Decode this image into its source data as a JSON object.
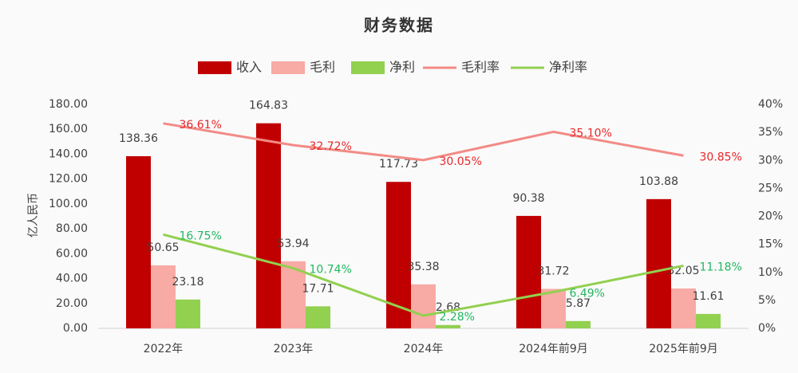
{
  "chart_data": {
    "type": "bar",
    "title": "财务数据",
    "y_label": "亿人民币",
    "categories": [
      "2022年",
      "2023年",
      "2024年",
      "2024年前9月",
      "2025年前9月"
    ],
    "series": [
      {
        "name": "收入",
        "type": "bar",
        "color": "#c00000",
        "values": [
          138.36,
          164.83,
          117.73,
          90.38,
          103.88
        ]
      },
      {
        "name": "毛利",
        "type": "bar",
        "color": "#f8aaa4",
        "values": [
          50.65,
          53.94,
          35.38,
          31.72,
          32.05
        ]
      },
      {
        "name": "净利",
        "type": "bar",
        "color": "#92d050",
        "values": [
          23.18,
          17.71,
          2.68,
          5.87,
          11.61
        ]
      },
      {
        "name": "毛利率",
        "type": "line",
        "axis": "y2",
        "color": "#f28b86",
        "label_color": "#e8282b",
        "values": [
          36.61,
          32.72,
          30.05,
          35.1,
          30.85
        ],
        "value_labels": [
          "36.61%",
          "32.72%",
          "30.05%",
          "35.10%",
          "30.85%"
        ]
      },
      {
        "name": "净利率",
        "type": "line",
        "axis": "y2",
        "color": "#92d050",
        "label_color": "#22b860",
        "values": [
          16.75,
          10.74,
          2.28,
          6.49,
          11.18
        ],
        "value_labels": [
          "16.75%",
          "10.74%",
          "2.28%",
          "6.49%",
          "11.18%"
        ]
      }
    ],
    "ylim": [
      0,
      180
    ],
    "yticks": [
      {
        "value": 0,
        "label": "0.00"
      },
      {
        "value": 20,
        "label": "20.00"
      },
      {
        "value": 40,
        "label": "40.00"
      },
      {
        "value": 60,
        "label": "60.00"
      },
      {
        "value": 80,
        "label": "80.00"
      },
      {
        "value": 100,
        "label": "100.00"
      },
      {
        "value": 120,
        "label": "120.00"
      },
      {
        "value": 140,
        "label": "140.00"
      },
      {
        "value": 160,
        "label": "160.00"
      },
      {
        "value": 180,
        "label": "180.00"
      }
    ],
    "y2lim": [
      0,
      40
    ],
    "y2ticks": [
      {
        "value": 0,
        "label": "0%"
      },
      {
        "value": 5,
        "label": "5%"
      },
      {
        "value": 10,
        "label": "10%"
      },
      {
        "value": 15,
        "label": "15%"
      },
      {
        "value": 20,
        "label": "20%"
      },
      {
        "value": 25,
        "label": "25%"
      },
      {
        "value": 30,
        "label": "30%"
      },
      {
        "value": 35,
        "label": "35%"
      },
      {
        "value": 40,
        "label": "40%"
      }
    ],
    "legend": "top"
  }
}
